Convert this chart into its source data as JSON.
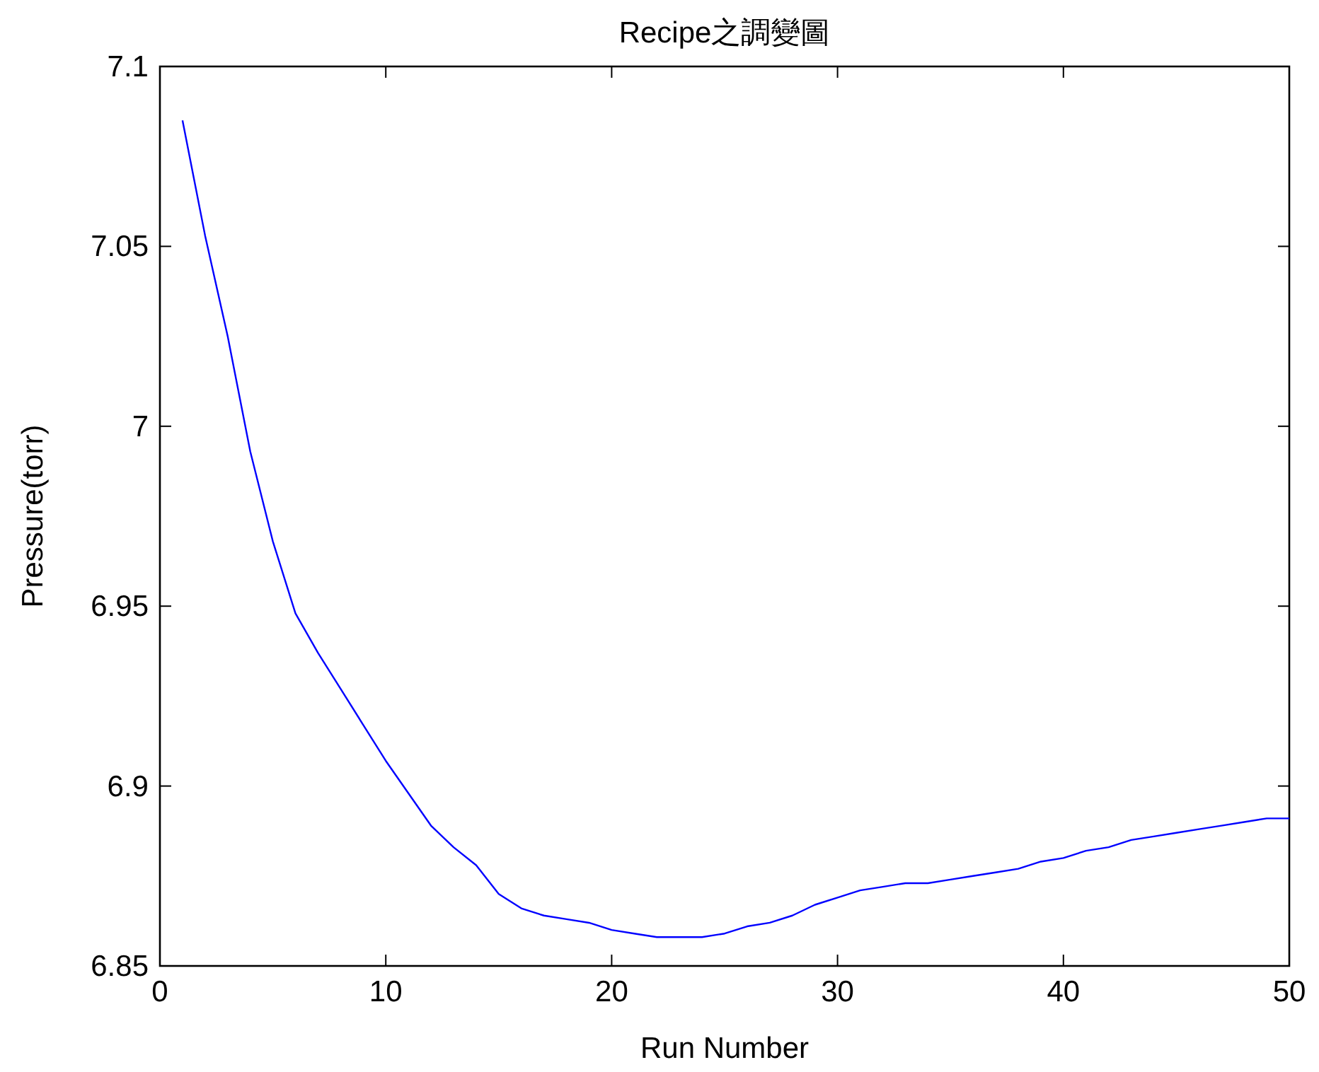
{
  "chart_data": {
    "type": "line",
    "title": "Recipe之調變圖",
    "xlabel": "Run Number",
    "ylabel": "Pressure(torr)",
    "x": [
      1,
      2,
      3,
      4,
      5,
      6,
      7,
      8,
      9,
      10,
      11,
      12,
      13,
      14,
      15,
      16,
      17,
      18,
      19,
      20,
      21,
      22,
      23,
      24,
      25,
      26,
      27,
      28,
      29,
      30,
      31,
      32,
      33,
      34,
      35,
      36,
      37,
      38,
      39,
      40,
      41,
      42,
      43,
      44,
      45,
      46,
      47,
      48,
      49,
      50
    ],
    "series": [
      {
        "color": "#0000ff",
        "values": [
          7.085,
          7.053,
          7.025,
          6.993,
          6.968,
          6.948,
          6.937,
          6.927,
          6.917,
          6.907,
          6.898,
          6.889,
          6.883,
          6.878,
          6.87,
          6.866,
          6.864,
          6.863,
          6.862,
          6.86,
          6.859,
          6.858,
          6.858,
          6.858,
          6.859,
          6.861,
          6.862,
          6.864,
          6.867,
          6.869,
          6.871,
          6.872,
          6.873,
          6.873,
          6.874,
          6.875,
          6.876,
          6.877,
          6.879,
          6.88,
          6.882,
          6.883,
          6.885,
          6.886,
          6.887,
          6.888,
          6.889,
          6.89,
          6.891,
          6.891
        ]
      }
    ],
    "xlim": [
      0,
      50
    ],
    "ylim": [
      6.85,
      7.1
    ],
    "xticks": [
      0,
      10,
      20,
      30,
      40,
      50
    ],
    "yticks": [
      6.85,
      6.9,
      6.95,
      7,
      7.05,
      7.1
    ],
    "line_style": "solid"
  }
}
